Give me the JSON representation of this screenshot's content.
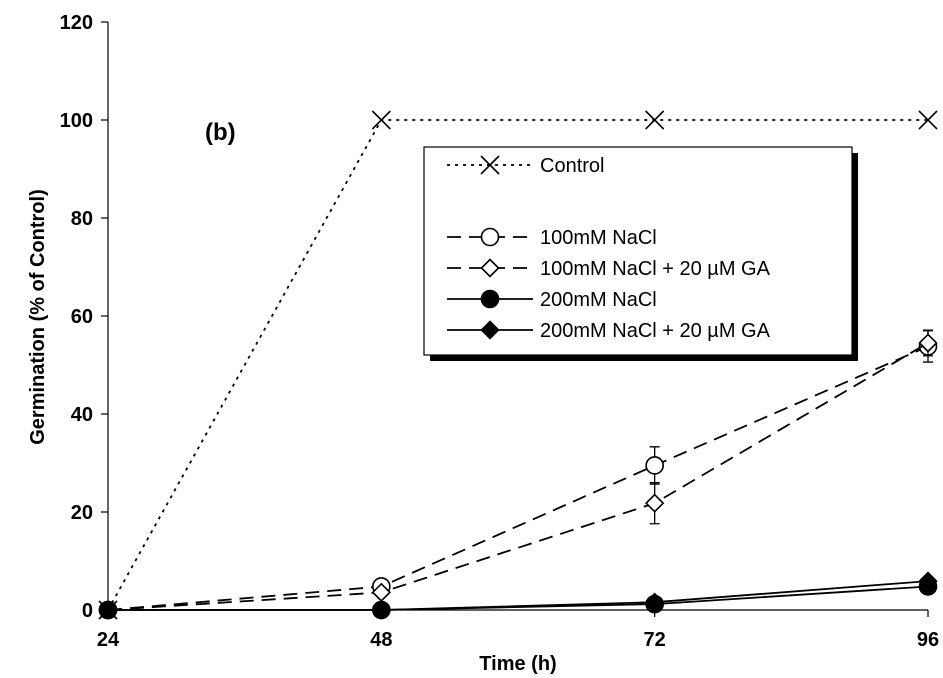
{
  "chart_data": {
    "type": "line",
    "panel_label": "(b)",
    "xlabel": "Time (h)",
    "ylabel": "Germination (% of Control)",
    "x": [
      24,
      48,
      72,
      96
    ],
    "xticks": [
      "24",
      "48",
      "72",
      "96"
    ],
    "ylim": [
      0,
      120
    ],
    "yticks": [
      "0",
      "20",
      "40",
      "60",
      "80",
      "100",
      "120"
    ],
    "grid": false,
    "legend_position": "upper-right",
    "series": [
      {
        "name": "Control",
        "values": [
          0,
          100,
          100,
          100
        ],
        "errors": [
          0,
          0,
          0,
          0
        ],
        "marker": "x",
        "line": "dotted",
        "color": "#000000"
      },
      {
        "name": "100mM NaCl",
        "values": [
          0,
          4.8,
          29.5,
          53.8
        ],
        "errors": [
          0,
          0.5,
          3.8,
          3.2
        ],
        "marker": "circle-open",
        "line": "dashed",
        "color": "#000000"
      },
      {
        "name": "100mM NaCl + 20 µM GA",
        "values": [
          0,
          3.6,
          21.8,
          54.5
        ],
        "errors": [
          0,
          0.5,
          4.2,
          2.6
        ],
        "marker": "diamond-open",
        "line": "dashed",
        "color": "#000000"
      },
      {
        "name": "200mM NaCl",
        "values": [
          0,
          0,
          1.2,
          4.8
        ],
        "errors": [
          0,
          0,
          0.3,
          0.4
        ],
        "marker": "circle-filled",
        "line": "solid",
        "color": "#000000"
      },
      {
        "name": "200mM NaCl + 20 µM GA",
        "values": [
          0,
          0,
          1.6,
          5.9
        ],
        "errors": [
          0,
          0,
          0.3,
          0.4
        ],
        "marker": "diamond-filled",
        "line": "solid",
        "color": "#000000"
      }
    ]
  }
}
